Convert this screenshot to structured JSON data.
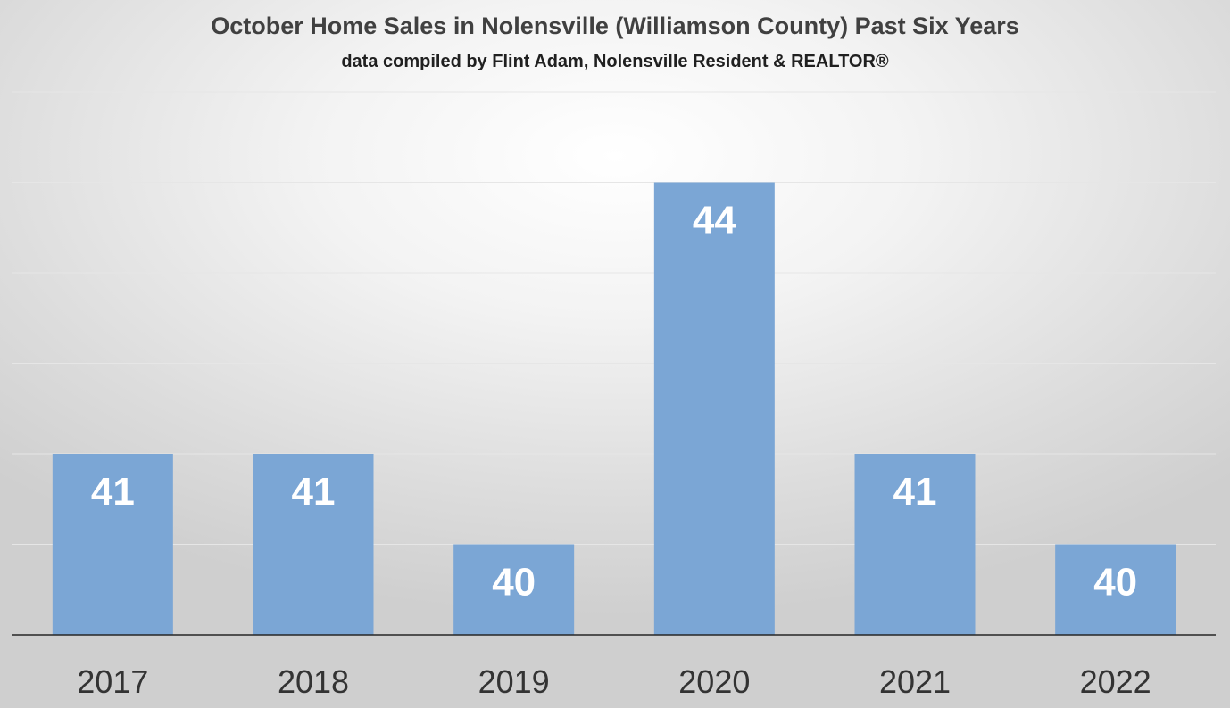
{
  "chart_data": {
    "type": "bar",
    "title": "October Home Sales in Nolensville (Williamson County) Past Six Years",
    "subtitle": "data compiled by Flint Adam, Nolensville Resident & REALTOR®",
    "categories": [
      "2017",
      "2018",
      "2019",
      "2020",
      "2021",
      "2022"
    ],
    "values": [
      41,
      41,
      40,
      44,
      41,
      40
    ],
    "ylim": [
      39,
      45
    ],
    "grid": true,
    "bar_color": "#7ba6d5",
    "label_color": "#ffffff"
  }
}
